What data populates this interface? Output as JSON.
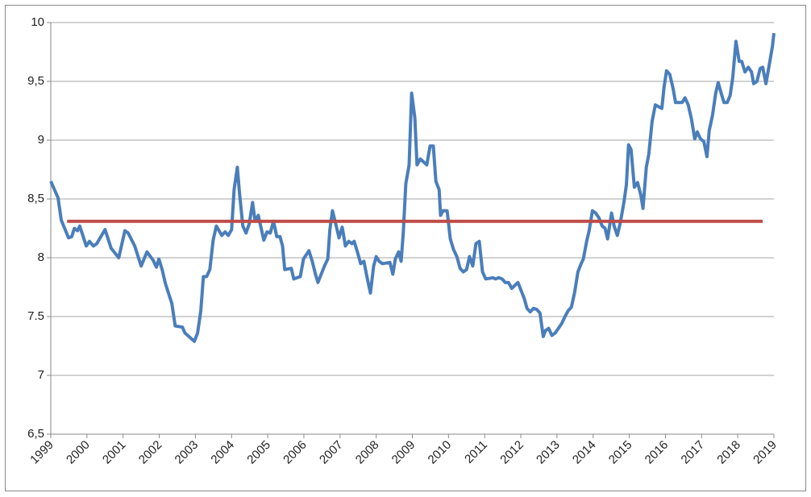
{
  "chart_data": {
    "type": "line",
    "xlim": [
      1999,
      2019
    ],
    "xticks": [
      1999,
      2000,
      2001,
      2002,
      2003,
      2004,
      2005,
      2006,
      2007,
      2008,
      2009,
      2010,
      2011,
      2012,
      2013,
      2014,
      2015,
      2016,
      2017,
      2018,
      2019
    ],
    "ylim": [
      6.5,
      10
    ],
    "yticks": [
      {
        "value": 6.5,
        "label": "6,5"
      },
      7,
      {
        "value": 7.5,
        "label": "7.5"
      },
      8,
      {
        "value": 8.5,
        "label": "8,5"
      },
      9,
      {
        "value": 9.5,
        "label": "9,5"
      },
      10
    ],
    "grid": true,
    "series": [
      {
        "color": "#4a7ebb",
        "x": [
          1999.0,
          1999.2,
          1999.29,
          1999.49,
          1999.58,
          1999.65,
          1999.74,
          1999.8,
          1999.98,
          2000.07,
          2000.18,
          2000.27,
          2000.5,
          2000.67,
          2000.88,
          2001.05,
          2001.14,
          2001.32,
          2001.5,
          2001.66,
          2001.83,
          2001.92,
          2001.99,
          2002.08,
          2002.17,
          2002.35,
          2002.44,
          2002.64,
          2002.71,
          2002.97,
          2003.06,
          2003.15,
          2003.22,
          2003.31,
          2003.4,
          2003.49,
          2003.58,
          2003.73,
          2003.82,
          2003.91,
          2004.0,
          2004.07,
          2004.16,
          2004.22,
          2004.31,
          2004.4,
          2004.49,
          2004.58,
          2004.65,
          2004.74,
          2004.89,
          2004.98,
          2005.07,
          2005.16,
          2005.25,
          2005.34,
          2005.41,
          2005.47,
          2005.65,
          2005.72,
          2005.9,
          2005.99,
          2006.14,
          2006.23,
          2006.32,
          2006.39,
          2006.57,
          2006.66,
          2006.72,
          2006.79,
          2006.88,
          2006.97,
          2007.06,
          2007.15,
          2007.24,
          2007.33,
          2007.39,
          2007.48,
          2007.57,
          2007.66,
          2007.75,
          2007.84,
          2007.93,
          2008.0,
          2008.08,
          2008.17,
          2008.38,
          2008.46,
          2008.53,
          2008.62,
          2008.69,
          2008.75,
          2008.82,
          2008.91,
          2008.98,
          2009.07,
          2009.13,
          2009.22,
          2009.4,
          2009.49,
          2009.58,
          2009.65,
          2009.74,
          2009.78,
          2009.85,
          2009.96,
          2010.05,
          2010.14,
          2010.23,
          2010.32,
          2010.41,
          2010.5,
          2010.58,
          2010.67,
          2010.76,
          2010.85,
          2010.94,
          2011.03,
          2011.23,
          2011.3,
          2011.39,
          2011.48,
          2011.57,
          2011.66,
          2011.75,
          2011.92,
          2012.1,
          2012.17,
          2012.26,
          2012.35,
          2012.44,
          2012.53,
          2012.62,
          2012.68,
          2012.77,
          2012.86,
          2012.95,
          2013.04,
          2013.13,
          2013.22,
          2013.31,
          2013.4,
          2013.49,
          2013.58,
          2013.67,
          2013.73,
          2013.82,
          2013.89,
          2013.98,
          2014.07,
          2014.16,
          2014.25,
          2014.33,
          2014.4,
          2014.51,
          2014.58,
          2014.67,
          2014.76,
          2014.85,
          2014.92,
          2014.98,
          2015.05,
          2015.14,
          2015.23,
          2015.32,
          2015.38,
          2015.47,
          2015.54,
          2015.63,
          2015.72,
          2015.9,
          2015.96,
          2016.03,
          2016.12,
          2016.21,
          2016.28,
          2016.46,
          2016.54,
          2016.63,
          2016.72,
          2016.81,
          2016.88,
          2016.97,
          2017.06,
          2017.15,
          2017.21,
          2017.3,
          2017.39,
          2017.46,
          2017.55,
          2017.62,
          2017.71,
          2017.79,
          2017.86,
          2017.95,
          2018.04,
          2018.11,
          2018.2,
          2018.29,
          2018.38,
          2018.44,
          2018.53,
          2018.62,
          2018.69,
          2018.78,
          2018.87,
          2018.96,
          2019.0
        ],
        "values": [
          8.65,
          8.51,
          8.32,
          8.17,
          8.18,
          8.25,
          8.23,
          8.27,
          8.1,
          8.14,
          8.1,
          8.12,
          8.24,
          8.08,
          8.0,
          8.23,
          8.21,
          8.1,
          7.93,
          8.05,
          7.98,
          7.92,
          7.99,
          7.9,
          7.78,
          7.61,
          7.42,
          7.41,
          7.36,
          7.29,
          7.36,
          7.55,
          7.84,
          7.84,
          7.9,
          8.15,
          8.27,
          8.19,
          8.22,
          8.19,
          8.24,
          8.58,
          8.77,
          8.55,
          8.27,
          8.21,
          8.29,
          8.47,
          8.31,
          8.36,
          8.15,
          8.22,
          8.21,
          8.31,
          8.18,
          8.18,
          8.1,
          7.9,
          7.91,
          7.82,
          7.84,
          7.99,
          8.06,
          7.97,
          7.86,
          7.79,
          7.93,
          7.99,
          8.24,
          8.4,
          8.29,
          8.17,
          8.26,
          8.1,
          8.14,
          8.12,
          8.14,
          8.05,
          7.95,
          7.97,
          7.83,
          7.7,
          7.93,
          8.01,
          7.97,
          7.95,
          7.96,
          7.86,
          7.99,
          8.05,
          7.97,
          8.22,
          8.63,
          8.79,
          9.4,
          9.19,
          8.79,
          8.84,
          8.79,
          8.95,
          8.95,
          8.65,
          8.58,
          8.36,
          8.4,
          8.4,
          8.16,
          8.07,
          8.01,
          7.91,
          7.88,
          7.9,
          8.01,
          7.93,
          8.12,
          8.14,
          7.88,
          7.82,
          7.83,
          7.82,
          7.83,
          7.82,
          7.79,
          7.79,
          7.74,
          7.79,
          7.65,
          7.57,
          7.54,
          7.57,
          7.56,
          7.53,
          7.33,
          7.38,
          7.4,
          7.34,
          7.36,
          7.4,
          7.44,
          7.5,
          7.55,
          7.58,
          7.71,
          7.88,
          7.95,
          7.99,
          8.14,
          8.23,
          8.4,
          8.38,
          8.34,
          8.27,
          8.25,
          8.16,
          8.38,
          8.27,
          8.19,
          8.31,
          8.47,
          8.62,
          8.96,
          8.92,
          8.6,
          8.64,
          8.53,
          8.42,
          8.77,
          8.88,
          9.16,
          9.3,
          9.27,
          9.45,
          9.59,
          9.56,
          9.44,
          9.32,
          9.32,
          9.36,
          9.3,
          9.18,
          9.01,
          9.07,
          9.01,
          8.99,
          8.86,
          9.08,
          9.21,
          9.4,
          9.49,
          9.39,
          9.32,
          9.32,
          9.38,
          9.53,
          9.84,
          9.67,
          9.67,
          9.58,
          9.62,
          9.58,
          9.48,
          9.5,
          9.61,
          9.62,
          9.48,
          9.64,
          9.8,
          9.91
        ]
      },
      {
        "color": "#be4b48",
        "x": [
          1999.45,
          2018.69
        ],
        "values": [
          8.31,
          8.31
        ]
      }
    ]
  }
}
